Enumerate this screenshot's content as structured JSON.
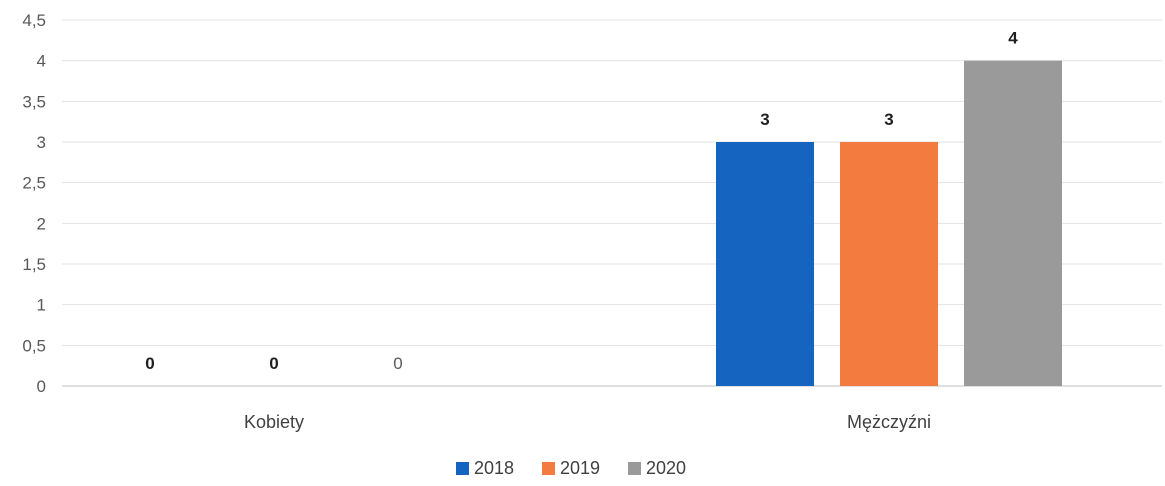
{
  "chart_data": {
    "type": "bar",
    "categories": [
      "Kobiety",
      "Mężczyźni"
    ],
    "series": [
      {
        "name": "2018",
        "values": [
          0,
          3
        ],
        "color": "#1565c0",
        "labels": [
          "0",
          "3"
        ],
        "label_bold": [
          true,
          true
        ]
      },
      {
        "name": "2019",
        "values": [
          0,
          3
        ],
        "color": "#f47b40",
        "labels": [
          "0",
          "3"
        ],
        "label_bold": [
          true,
          true
        ]
      },
      {
        "name": "2020",
        "values": [
          0,
          4
        ],
        "color": "#9a9a9a",
        "labels": [
          "0",
          "4"
        ],
        "label_bold": [
          false,
          true
        ]
      }
    ],
    "y_ticks": [
      "0",
      "0,5",
      "1",
      "1,5",
      "2",
      "2,5",
      "3",
      "3,5",
      "4",
      "4,5"
    ],
    "ylim": [
      0,
      4.5
    ],
    "grid": true,
    "legend_position": "bottom"
  }
}
